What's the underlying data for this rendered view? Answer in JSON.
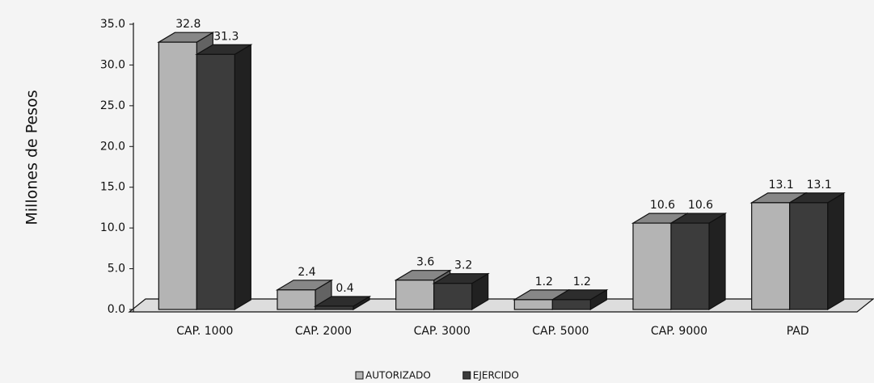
{
  "chart_data": {
    "type": "bar",
    "y_axis_label": "Millones de Pesos",
    "categories": [
      "CAP. 1000",
      "CAP. 2000",
      "CAP. 3000",
      "CAP. 5000",
      "CAP. 9000",
      "PAD"
    ],
    "series": [
      {
        "name": "AUTORIZADO",
        "color": "#b4b4b4",
        "values": [
          32.8,
          2.4,
          3.6,
          1.2,
          10.6,
          13.1
        ]
      },
      {
        "name": "EJERCIDO",
        "color": "#3c3c3c",
        "values": [
          31.3,
          0.4,
          3.2,
          1.2,
          10.6,
          13.1
        ]
      }
    ],
    "ylim": [
      0,
      35
    ],
    "yticks": [
      {
        "value": 0,
        "label": "0.0"
      },
      {
        "value": 5,
        "label": "5.0"
      },
      {
        "value": 10,
        "label": "10.0"
      },
      {
        "value": 15,
        "label": "15.0"
      },
      {
        "value": 20,
        "label": "20.0"
      },
      {
        "value": 25,
        "label": "25.0"
      },
      {
        "value": 30,
        "label": "30.0"
      },
      {
        "value": 35,
        "label": "35.0"
      }
    ],
    "legend": "bottom"
  }
}
